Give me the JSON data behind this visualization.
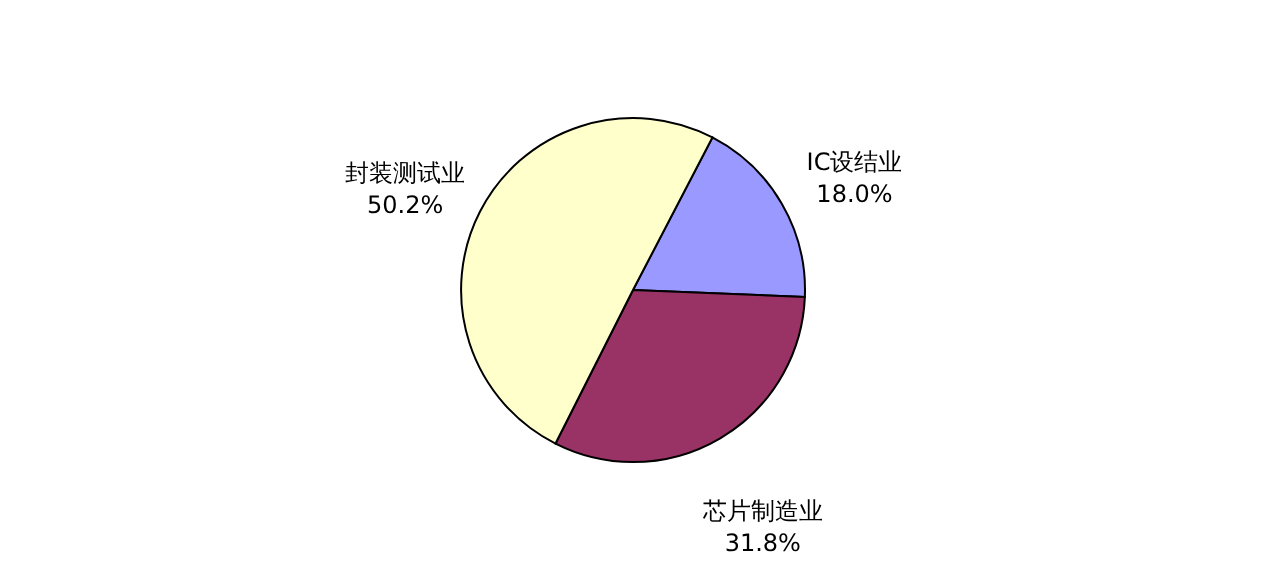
{
  "chart_data": {
    "type": "pie",
    "categories": [
      "IC设结业",
      "芯片制造业",
      "封装测试业"
    ],
    "values": [
      18.0,
      31.8,
      50.2
    ],
    "colors": [
      "#9999ff",
      "#993366",
      "#ffffcc"
    ],
    "value_labels": [
      "18.0%",
      "31.8%",
      "50.2%"
    ],
    "legend": false
  }
}
